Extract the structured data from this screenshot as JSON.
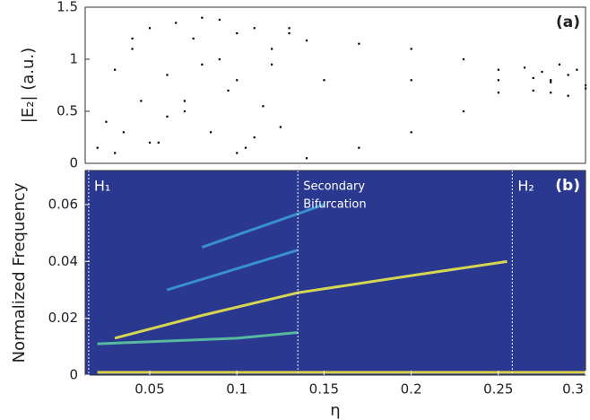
{
  "chart_data": [
    {
      "type": "scatter",
      "ylabel": "|E₂| (a.u.)",
      "panel_label": "(a)",
      "color": "#000000",
      "xlim": [
        0.013,
        0.3
      ],
      "ylim": [
        0,
        1.5
      ],
      "yticks": [
        0,
        0.5,
        1,
        1.5
      ],
      "x": [
        0.02,
        0.025,
        0.03,
        0.035,
        0.04,
        0.045,
        0.05,
        0.055,
        0.06,
        0.065,
        0.07,
        0.075,
        0.08,
        0.085,
        0.09,
        0.095,
        0.1,
        0.105,
        0.11,
        0.115,
        0.12,
        0.125,
        0.13,
        0.03,
        0.05,
        0.07,
        0.09,
        0.11,
        0.13,
        0.04,
        0.06,
        0.08,
        0.1,
        0.12,
        0.14,
        0.17,
        0.2,
        0.23,
        0.25,
        0.14,
        0.17,
        0.2,
        0.23,
        0.25,
        0.1,
        0.15,
        0.2,
        0.25,
        0.28,
        0.265,
        0.27,
        0.275,
        0.28,
        0.285,
        0.29,
        0.295,
        0.3,
        0.27,
        0.28,
        0.29,
        0.3
      ],
      "values": [
        0.15,
        0.4,
        0.9,
        0.3,
        1.1,
        0.6,
        1.3,
        0.2,
        0.85,
        1.35,
        0.5,
        1.2,
        0.95,
        0.3,
        1.38,
        0.7,
        1.25,
        0.15,
        1.3,
        0.55,
        1.1,
        0.35,
        1.25,
        0.1,
        0.2,
        0.6,
        1.0,
        0.25,
        1.3,
        1.2,
        0.45,
        1.4,
        0.1,
        0.95,
        1.18,
        1.15,
        1.1,
        1.0,
        0.9,
        0.05,
        0.15,
        0.3,
        0.5,
        0.68,
        0.8,
        0.8,
        0.8,
        0.8,
        0.8,
        0.92,
        0.7,
        0.88,
        0.68,
        0.95,
        0.65,
        0.9,
        0.75,
        0.82,
        0.78,
        0.85,
        0.72
      ]
    },
    {
      "type": "spectrogram",
      "ylabel": "Normalized Frequency",
      "xlabel": "η",
      "panel_label": "(b)",
      "background_color": "#2a3890",
      "xlim": [
        0.013,
        0.3
      ],
      "ylim": [
        0,
        0.072
      ],
      "xticks": [
        0.05,
        0.1,
        0.15,
        0.2,
        0.25,
        0.3
      ],
      "yticks": [
        0,
        0.02,
        0.04,
        0.06
      ],
      "markers": [
        {
          "x": 0.015,
          "label": [
            "H₁"
          ]
        },
        {
          "x": 0.135,
          "label": [
            "Secondary",
            "Bifurcation"
          ]
        },
        {
          "x": 0.258,
          "label": [
            "H₂"
          ]
        }
      ],
      "series": [
        {
          "color": "#e8e84a",
          "x": [
            0.03,
            0.08,
            0.135,
            0.2,
            0.255
          ],
          "values": [
            0.013,
            0.021,
            0.029,
            0.035,
            0.04
          ]
        },
        {
          "color": "#5cc8a0",
          "x": [
            0.02,
            0.1,
            0.135
          ],
          "values": [
            0.011,
            0.013,
            0.015
          ]
        },
        {
          "color": "#3a9ad8",
          "x": [
            0.06,
            0.135
          ],
          "values": [
            0.03,
            0.044
          ]
        },
        {
          "color": "#3a9ad8",
          "x": [
            0.08,
            0.15
          ],
          "values": [
            0.045,
            0.06
          ]
        },
        {
          "color": "#f0e040",
          "x": [
            0.02,
            0.3
          ],
          "values": [
            0.001,
            0.001
          ]
        }
      ]
    }
  ]
}
